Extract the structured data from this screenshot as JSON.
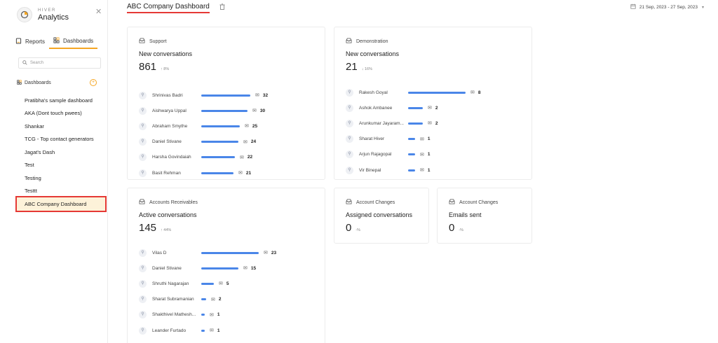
{
  "brand": {
    "small": "HIVER",
    "big": "Analytics",
    "logo_icon": "pie-chart-icon"
  },
  "nav": {
    "reports_label": "Reports",
    "dashboards_label": "Dashboards"
  },
  "search": {
    "placeholder": "Search"
  },
  "dashboards_section": {
    "label": "Dashboards",
    "items": [
      "Pratibha's sample dashboard",
      "AKA (Dont touch pwees)",
      "Shankar",
      "TCG - Top contact generators",
      "Jagat's Dash",
      "Test",
      "Testing",
      "Testtt",
      "ABC Company Dashboard"
    ],
    "active_index": 8
  },
  "header": {
    "title": "ABC Company Dashboard",
    "date_range": "21 Sep, 2023 - 27 Sep, 2023"
  },
  "colors": {
    "accent": "#f5a623",
    "bar": "#4a86e8",
    "highlight": "#e53935"
  },
  "cards": {
    "support": {
      "title": "Support",
      "subtitle": "New conversations",
      "value": "861",
      "change": "↑ 8%",
      "rows": [
        {
          "name": "Shrinivas Badri",
          "value": 32
        },
        {
          "name": "Aishwarya Uppal",
          "value": 30
        },
        {
          "name": "Abraham Smythe",
          "value": 25
        },
        {
          "name": "Daniel Stivane",
          "value": 24
        },
        {
          "name": "Harsha Govindaiah",
          "value": 22
        },
        {
          "name": "Basit Rehman",
          "value": 21
        }
      ]
    },
    "demonstration": {
      "title": "Demonstration",
      "subtitle": "New conversations",
      "value": "21",
      "change": "↓ 16%",
      "rows": [
        {
          "name": "Rakesh Goyal",
          "value": 8
        },
        {
          "name": "Ashok Ambanee",
          "value": 2
        },
        {
          "name": "Arunkumar Jayaram...",
          "value": 2
        },
        {
          "name": "Sharat Hiver",
          "value": 1
        },
        {
          "name": "Arjun Rajagopal",
          "value": 1
        },
        {
          "name": "Vir Binepal",
          "value": 1
        }
      ]
    },
    "accounts": {
      "title": "Accounts Receivables",
      "subtitle": "Active conversations",
      "value": "145",
      "change": "↑ 44%",
      "rows": [
        {
          "name": "Vilas D",
          "value": 23
        },
        {
          "name": "Daniel Stivane",
          "value": 15
        },
        {
          "name": "Shruthi Nagarajan",
          "value": 5
        },
        {
          "name": "Sharat Subramanian",
          "value": 2
        },
        {
          "name": "Shakthivel Mathesh...",
          "value": 1
        },
        {
          "name": "Leander Furtado",
          "value": 1
        }
      ]
    },
    "account_changes_1": {
      "title": "Account Changes",
      "subtitle": "Assigned conversations",
      "value": "0",
      "change": "-%"
    },
    "account_changes_2": {
      "title": "Account Changes",
      "subtitle": "Emails sent",
      "value": "0",
      "change": "-%"
    }
  }
}
